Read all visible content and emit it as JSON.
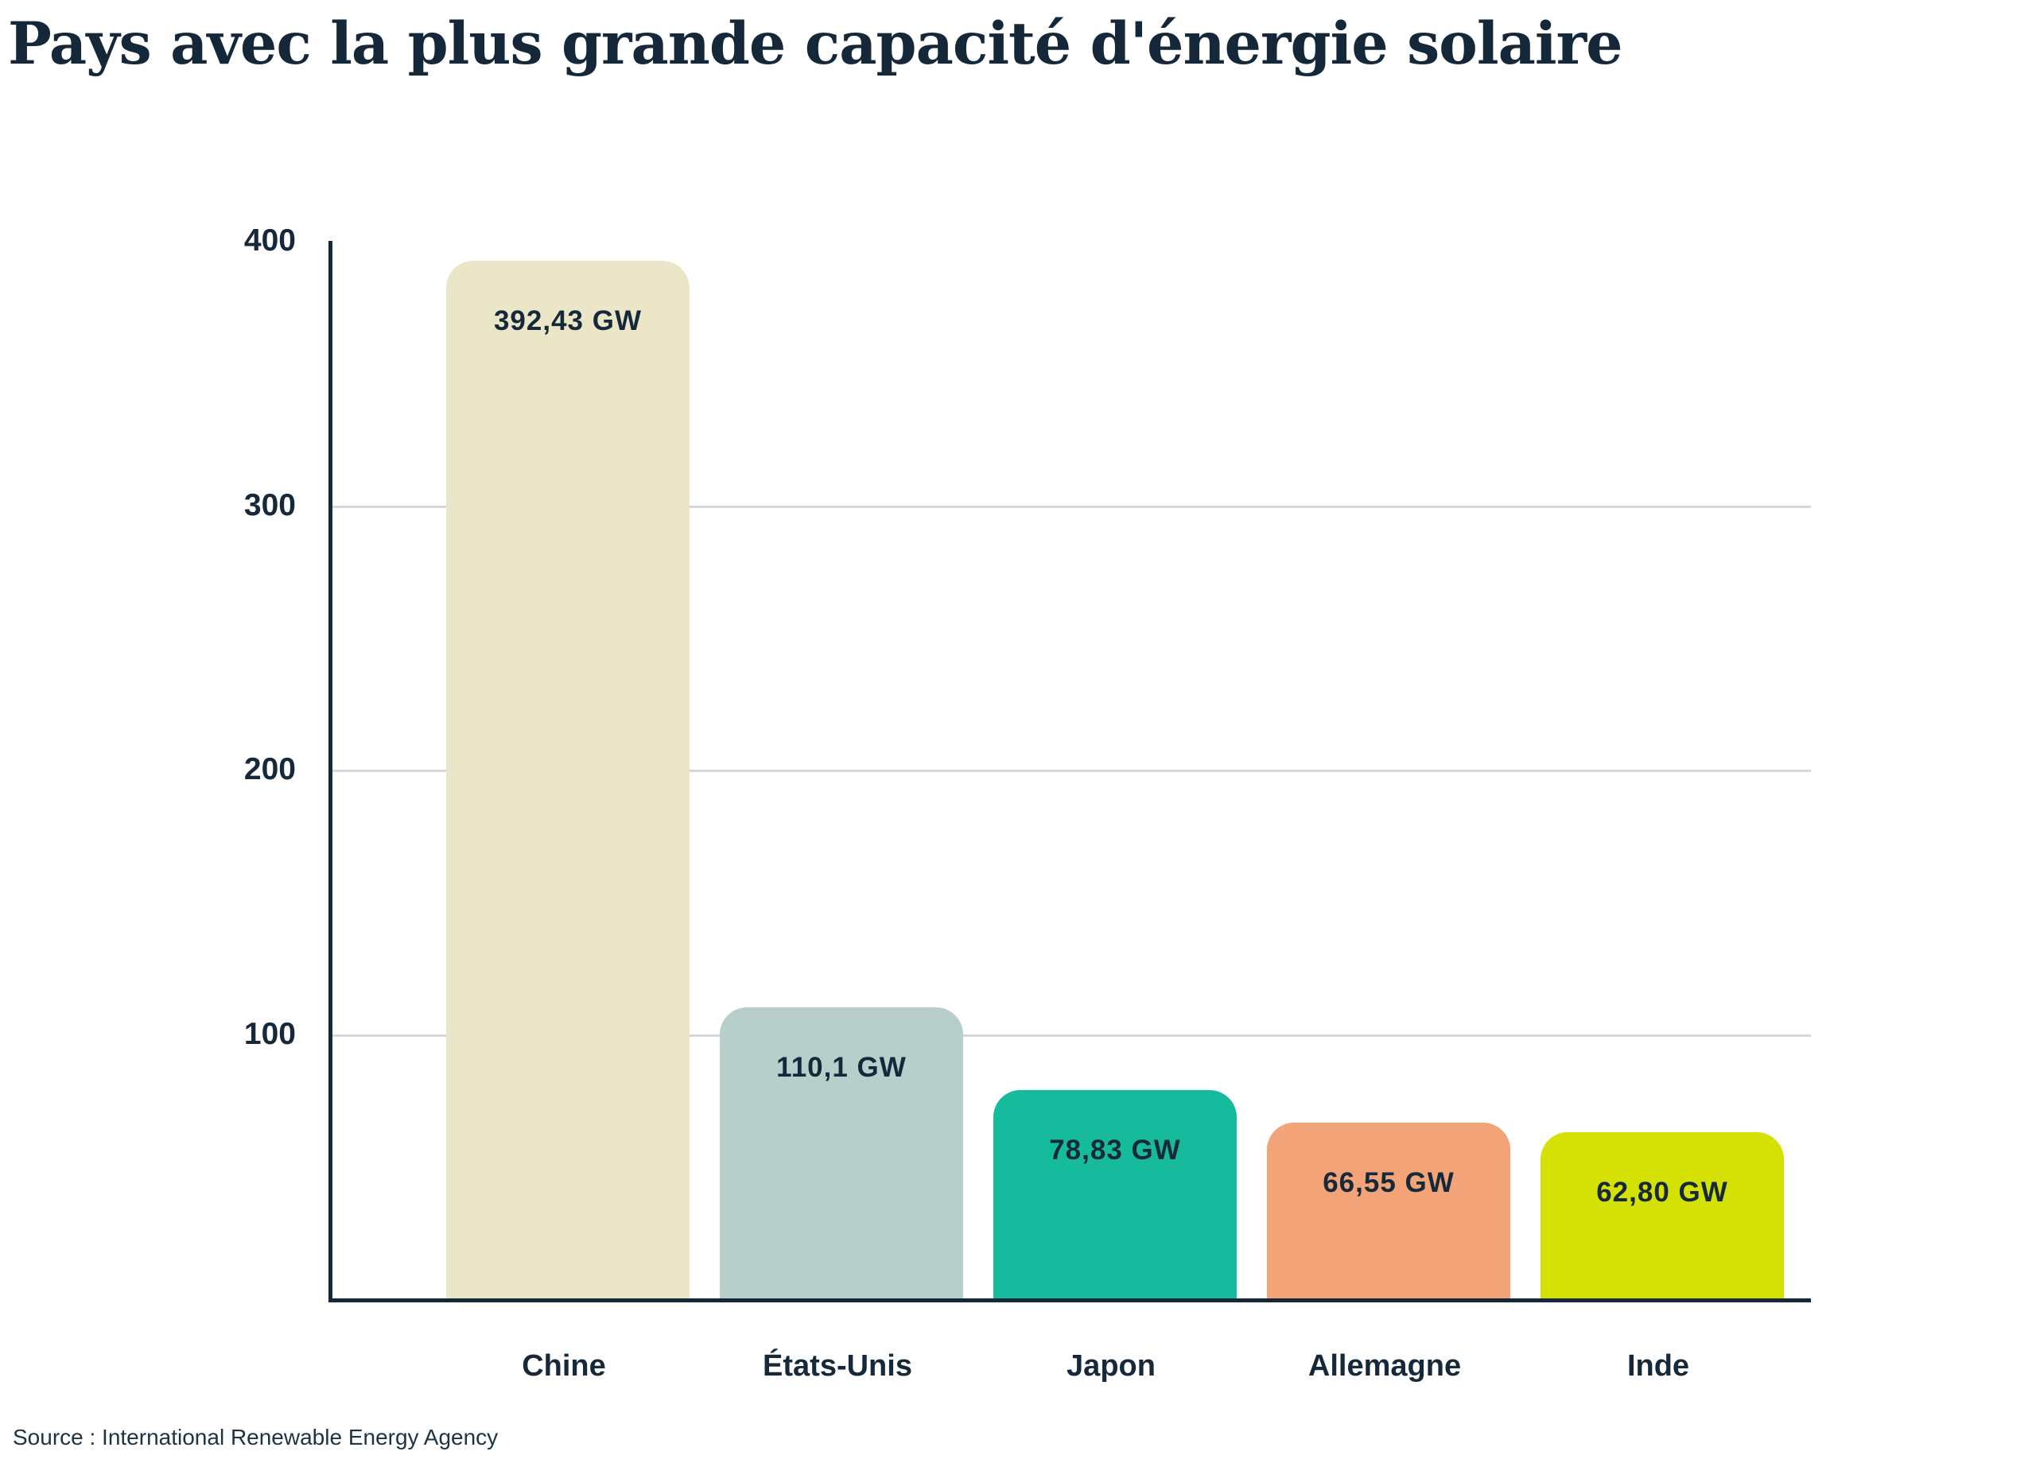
{
  "title": "Pays avec la plus grande capacité d'énergie solaire",
  "source": "Source : International Renewable Energy Agency",
  "colors": {
    "background": "#ffffff",
    "text": "#15293b",
    "axis": "#14283a",
    "gridline": "#d4d8db"
  },
  "chart_data": {
    "type": "bar",
    "title": "Pays avec la plus grande capacité d'énergie solaire",
    "categories": [
      "Chine",
      "États-Unis",
      "Japon",
      "Allemagne",
      "Inde"
    ],
    "values": [
      392.43,
      110.1,
      78.83,
      66.55,
      62.8
    ],
    "value_labels": [
      "392,43 GW",
      "110,1 GW",
      "78,83 GW",
      "66,55 GW",
      "62,80 GW"
    ],
    "bar_colors": [
      "#ece6c9",
      "#b7cecb",
      "#16bb9e",
      "#f2a478",
      "#d5e005"
    ],
    "unit": "GW",
    "xlabel": "",
    "ylabel": "",
    "ylim": [
      0,
      400
    ],
    "yticks": [
      400,
      300,
      200,
      100
    ],
    "ytick_labels": [
      "400",
      "300",
      "200",
      "100"
    ],
    "gridlines_at": [
      300,
      200,
      100
    ],
    "grid": "horizontal-only",
    "legend": "none",
    "source": "Source : International Renewable Energy Agency"
  }
}
